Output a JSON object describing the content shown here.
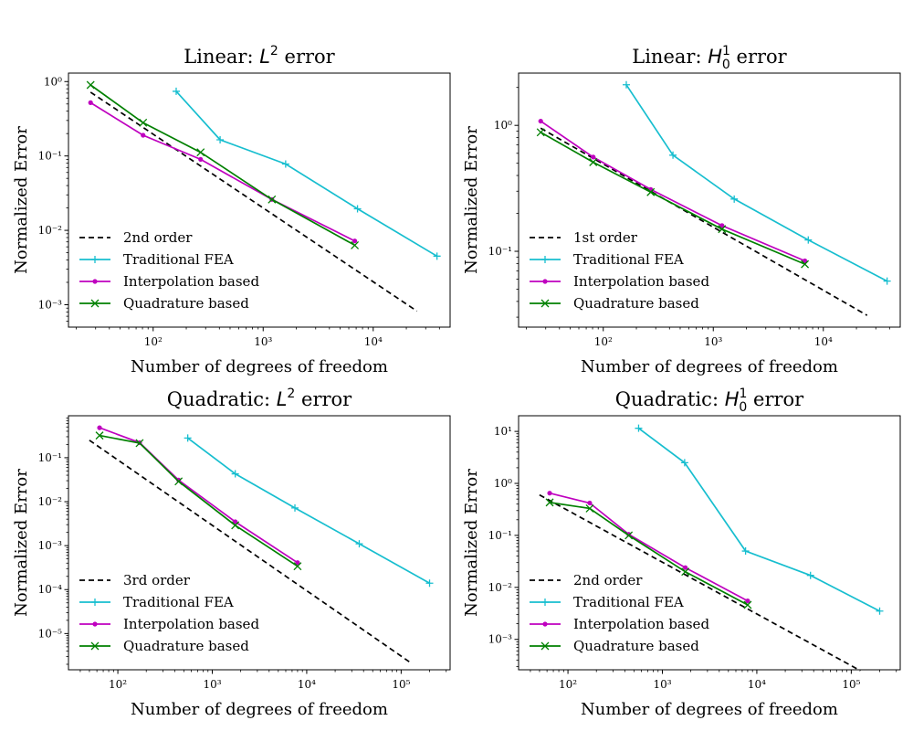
{
  "colors": {
    "reference": "#000000",
    "traditional": "#17becf",
    "interpolation": "#bf00bf",
    "quadrature": "#008000"
  },
  "chart_data": [
    {
      "type": "line",
      "id": "lin-l2",
      "title": "Linear: L² error",
      "title_parts": {
        "prefix": "Linear: ",
        "base": "L",
        "sup": "2",
        "suffix": " error"
      },
      "xlabel": "Number of degrees of freedom",
      "ylabel": "Normalized Error",
      "xscale": "log",
      "yscale": "log",
      "xlim": [
        17,
        50000
      ],
      "ylim": [
        0.0005,
        1.3
      ],
      "xticks": [
        {
          "value": 100,
          "label": "10²"
        },
        {
          "value": 1000,
          "label": "10³"
        },
        {
          "value": 10000,
          "label": "10⁴"
        }
      ],
      "yticks": [
        {
          "value": 0.001,
          "label": "10⁻³"
        },
        {
          "value": 0.01,
          "label": "10⁻²"
        },
        {
          "value": 0.1,
          "label": "10⁻¹"
        },
        {
          "value": 1,
          "label": "10⁰"
        }
      ],
      "legend_position": "lower-left",
      "series": [
        {
          "name": "2nd order",
          "key": "reference",
          "marker": "none",
          "dashed": true,
          "x": [
            27,
            25000
          ],
          "y": [
            0.72,
            0.00082
          ]
        },
        {
          "name": "Traditional FEA",
          "key": "traditional",
          "marker": "plus",
          "x": [
            162,
            406,
            1600,
            7200,
            38000
          ],
          "y": [
            0.74,
            0.165,
            0.078,
            0.0195,
            0.0045
          ]
        },
        {
          "name": "Interpolation based",
          "key": "interpolation",
          "marker": "dot",
          "x": [
            27,
            81,
            270,
            1200,
            6800
          ],
          "y": [
            0.52,
            0.19,
            0.09,
            0.026,
            0.0072
          ]
        },
        {
          "name": "Quadrature based",
          "key": "quadrature",
          "marker": "x",
          "x": [
            27,
            81,
            270,
            1200,
            6800
          ],
          "y": [
            0.9,
            0.28,
            0.112,
            0.026,
            0.0063
          ]
        }
      ]
    },
    {
      "type": "line",
      "id": "lin-h1",
      "title": "Linear: H₀¹ error",
      "title_parts": {
        "prefix": "Linear: ",
        "base": "H",
        "sup": "1",
        "sub": "0",
        "suffix": " error"
      },
      "xlabel": "Number of degrees of freedom",
      "ylabel": "Normalized Error",
      "xscale": "log",
      "yscale": "log",
      "xlim": [
        17,
        50000
      ],
      "ylim": [
        0.025,
        2.6
      ],
      "xticks": [
        {
          "value": 100,
          "label": "10²"
        },
        {
          "value": 1000,
          "label": "10³"
        },
        {
          "value": 10000,
          "label": "10⁴"
        }
      ],
      "yticks": [
        {
          "value": 0.1,
          "label": "10⁻¹"
        },
        {
          "value": 1,
          "label": "10⁰"
        }
      ],
      "legend_position": "lower-left",
      "series": [
        {
          "name": "1st order",
          "key": "reference",
          "marker": "none",
          "dashed": true,
          "x": [
            27,
            25000
          ],
          "y": [
            0.95,
            0.031
          ]
        },
        {
          "name": "Traditional FEA",
          "key": "traditional",
          "marker": "plus",
          "x": [
            162,
            430,
            1550,
            7300,
            38000
          ],
          "y": [
            2.1,
            0.58,
            0.26,
            0.123,
            0.058
          ]
        },
        {
          "name": "Interpolation based",
          "key": "interpolation",
          "marker": "dot",
          "x": [
            27,
            81,
            270,
            1200,
            6800
          ],
          "y": [
            1.08,
            0.56,
            0.31,
            0.16,
            0.084
          ]
        },
        {
          "name": "Quadrature based",
          "key": "quadrature",
          "marker": "x",
          "x": [
            27,
            81,
            270,
            1200,
            6800
          ],
          "y": [
            0.88,
            0.51,
            0.295,
            0.15,
            0.079
          ]
        }
      ]
    },
    {
      "type": "line",
      "id": "quad-l2",
      "title": "Quadratic: L² error",
      "title_parts": {
        "prefix": "Quadratic: ",
        "base": "L",
        "sup": "2",
        "suffix": " error"
      },
      "xlabel": "Number of degrees of freedom",
      "ylabel": "Normalized Error",
      "xscale": "log",
      "yscale": "log",
      "xlim": [
        30,
        330000
      ],
      "ylim": [
        1.5e-06,
        0.9
      ],
      "xticks": [
        {
          "value": 100,
          "label": "10²"
        },
        {
          "value": 1000,
          "label": "10³"
        },
        {
          "value": 10000,
          "label": "10⁴"
        },
        {
          "value": 100000,
          "label": "10⁵"
        }
      ],
      "yticks": [
        {
          "value": 1e-05,
          "label": "10⁻⁵"
        },
        {
          "value": 0.0001,
          "label": "10⁻⁴"
        },
        {
          "value": 0.001,
          "label": "10⁻³"
        },
        {
          "value": 0.01,
          "label": "10⁻²"
        },
        {
          "value": 0.1,
          "label": "10⁻¹"
        }
      ],
      "legend_position": "lower-left",
      "series": [
        {
          "name": "3rd order",
          "key": "reference",
          "marker": "none",
          "dashed": true,
          "x": [
            50,
            125000
          ],
          "y": [
            0.25,
            2.2e-06
          ]
        },
        {
          "name": "Traditional FEA",
          "key": "traditional",
          "marker": "plus",
          "x": [
            550,
            1750,
            7500,
            36000,
            200000
          ],
          "y": [
            0.28,
            0.043,
            0.0072,
            0.0011,
            0.00014
          ]
        },
        {
          "name": "Interpolation based",
          "key": "interpolation",
          "marker": "dot",
          "x": [
            64,
            170,
            440,
            1750,
            8000
          ],
          "y": [
            0.48,
            0.22,
            0.031,
            0.0035,
            0.00041
          ]
        },
        {
          "name": "Quadrature based",
          "key": "quadrature",
          "marker": "x",
          "x": [
            64,
            170,
            440,
            1750,
            8000
          ],
          "y": [
            0.32,
            0.215,
            0.029,
            0.0029,
            0.00034
          ]
        }
      ]
    },
    {
      "type": "line",
      "id": "quad-h1",
      "title": "Quadratic: H₀¹ error",
      "title_parts": {
        "prefix": "Quadratic: ",
        "base": "H",
        "sup": "1",
        "sub": "0",
        "suffix": " error"
      },
      "xlabel": "Number of degrees of freedom",
      "ylabel": "Normalized Error",
      "xscale": "log",
      "yscale": "log",
      "xlim": [
        30,
        330000
      ],
      "ylim": [
        0.00026,
        20
      ],
      "xticks": [
        {
          "value": 100,
          "label": "10²"
        },
        {
          "value": 1000,
          "label": "10³"
        },
        {
          "value": 10000,
          "label": "10⁴"
        },
        {
          "value": 100000,
          "label": "10⁵"
        }
      ],
      "yticks": [
        {
          "value": 0.001,
          "label": "10⁻³"
        },
        {
          "value": 0.01,
          "label": "10⁻²"
        },
        {
          "value": 0.1,
          "label": "10⁻¹"
        },
        {
          "value": 1,
          "label": "10⁰"
        },
        {
          "value": 10,
          "label": "10¹"
        }
      ],
      "legend_position": "lower-left",
      "series": [
        {
          "name": "2nd order",
          "key": "reference",
          "marker": "none",
          "dashed": true,
          "x": [
            50,
            125000
          ],
          "y": [
            0.6,
            0.00025
          ]
        },
        {
          "name": "Traditional FEA",
          "key": "traditional",
          "marker": "plus",
          "x": [
            560,
            1720,
            7600,
            37000,
            200000
          ],
          "y": [
            11.5,
            2.5,
            0.05,
            0.017,
            0.0035
          ]
        },
        {
          "name": "Interpolation based",
          "key": "interpolation",
          "marker": "dot",
          "x": [
            64,
            170,
            440,
            1750,
            8000
          ],
          "y": [
            0.65,
            0.42,
            0.105,
            0.024,
            0.0055
          ]
        },
        {
          "name": "Quadrature based",
          "key": "quadrature",
          "marker": "x",
          "x": [
            64,
            170,
            440,
            1750,
            8000
          ],
          "y": [
            0.43,
            0.33,
            0.1,
            0.02,
            0.0046
          ]
        }
      ]
    }
  ]
}
